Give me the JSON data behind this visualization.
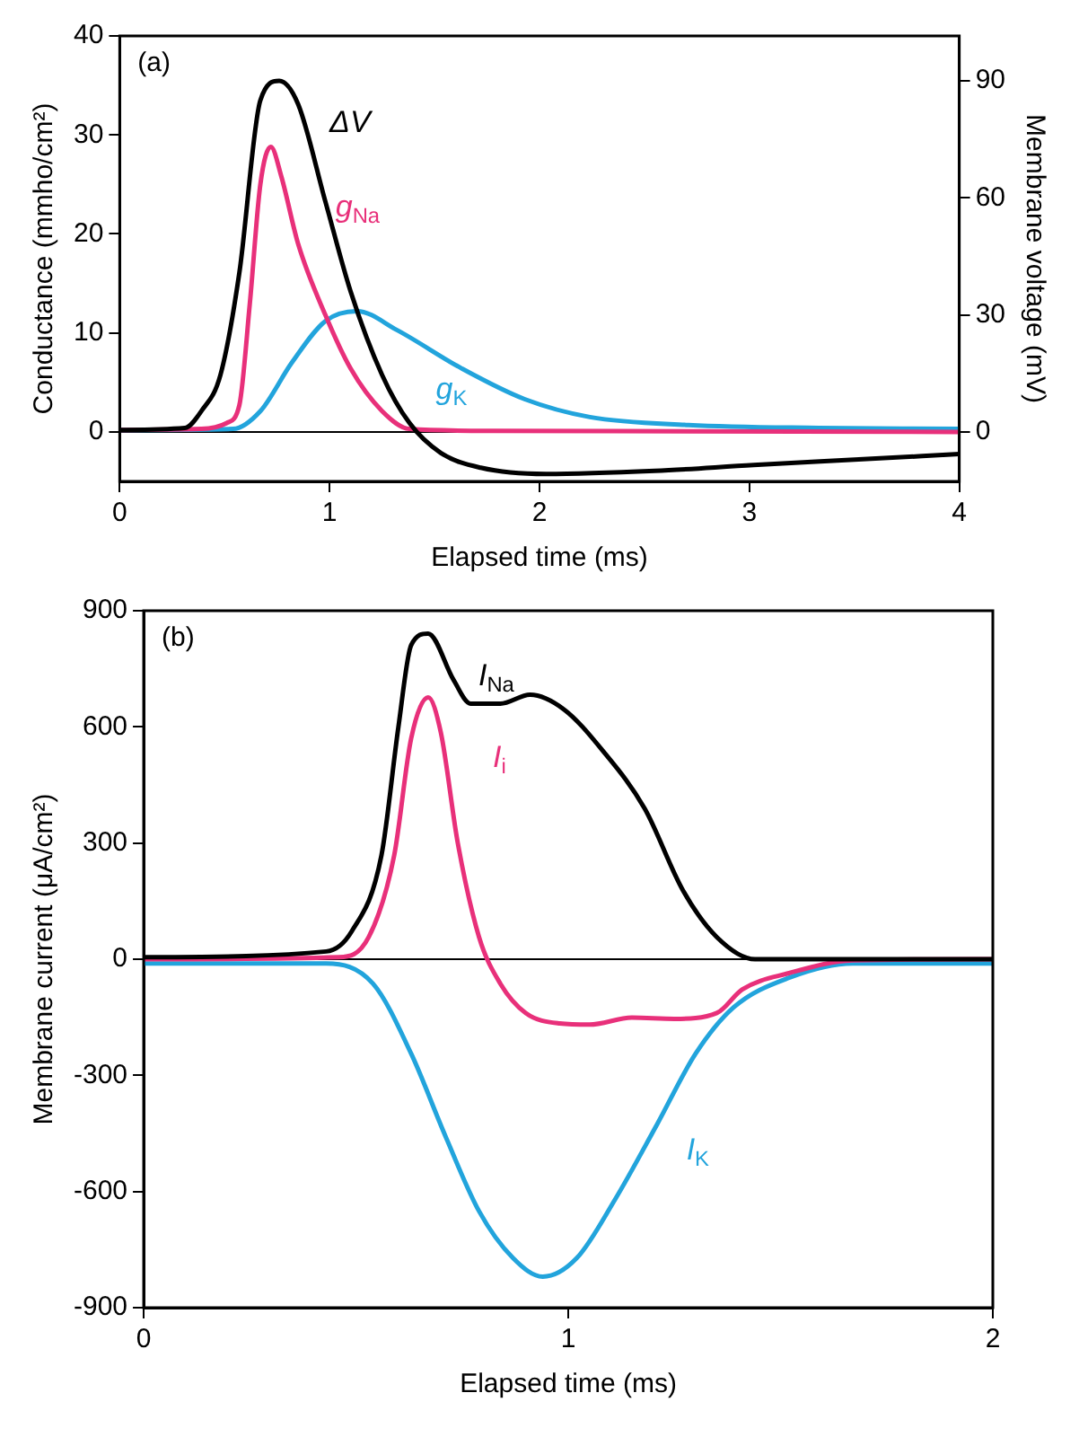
{
  "chart_data": [
    {
      "type": "line",
      "annotations": [
        "(a)"
      ],
      "xlabel": "Elapsed time (ms)",
      "ylabel": "Conductance (mmho/cm²)",
      "y2label": "Membrane voltage (mV)",
      "xlim": [
        0,
        4
      ],
      "xticks": [
        0,
        1,
        2,
        3,
        4
      ],
      "ylim": [
        -5,
        40
      ],
      "yticks": [
        0,
        10,
        20,
        30,
        40
      ],
      "y2lim": [
        -12.7,
        101.5
      ],
      "y2ticks": [
        0,
        30,
        60,
        90
      ],
      "grid": false,
      "legend": false,
      "marker": "none",
      "line_style": "solid",
      "ref_lines": [
        {
          "axis": "y",
          "value": 0,
          "color": "#000000"
        }
      ],
      "series": [
        {
          "name": "ΔV",
          "color": "#000000",
          "axis": "y2",
          "x": [
            0,
            0.31,
            0.39,
            0.48,
            0.57,
            0.67,
            0.76,
            0.85,
            0.98,
            1.1,
            1.25,
            1.38,
            1.53,
            1.72,
            2.03,
            2.55,
            3.02,
            3.48,
            4
          ],
          "values": [
            0.5,
            1,
            5.4,
            14.6,
            40.8,
            85,
            90,
            84,
            59,
            36,
            14.6,
            2.3,
            -5.4,
            -9.2,
            -10.8,
            -10,
            -8.5,
            -7.2,
            -5.7
          ]
        },
        {
          "name": "g$_{Na}$",
          "color": "#e8307a",
          "x": [
            0,
            0.39,
            0.51,
            0.57,
            0.62,
            0.67,
            0.72,
            0.77,
            0.85,
            0.98,
            1.1,
            1.25,
            1.38,
            1.78,
            4
          ],
          "values": [
            0.2,
            0.3,
            0.9,
            2.7,
            13,
            25,
            28.8,
            25.8,
            19,
            11.8,
            6.4,
            2.1,
            0.3,
            0.1,
            0
          ]
        },
        {
          "name": "g$_{K}$",
          "color": "#22a4dc",
          "x": [
            0,
            0.54,
            0.67,
            0.82,
            0.98,
            1.13,
            1.32,
            1.63,
            1.93,
            2.24,
            2.71,
            3.33,
            4
          ],
          "values": [
            0.2,
            0.3,
            2.1,
            7,
            11.2,
            12.2,
            10.3,
            6.4,
            3.3,
            1.5,
            0.7,
            0.4,
            0.3
          ]
        }
      ]
    },
    {
      "type": "line",
      "annotations": [
        "(b)"
      ],
      "xlabel": "Elapsed time (ms)",
      "ylabel": "Membrane current (μA/cm²)",
      "xlim": [
        0,
        2
      ],
      "xticks": [
        0,
        1,
        2
      ],
      "ylim": [
        -900,
        900
      ],
      "yticks": [
        -900,
        -600,
        -300,
        0,
        300,
        600,
        900
      ],
      "grid": false,
      "legend": false,
      "marker": "none",
      "line_style": "solid",
      "ref_lines": [
        {
          "axis": "y",
          "value": 0,
          "color": "#000000"
        }
      ],
      "series": [
        {
          "name": "I$_{Na}$",
          "color": "#000000",
          "x": [
            0,
            0.43,
            0.49,
            0.56,
            0.6,
            0.63,
            0.67,
            0.73,
            0.77,
            0.84,
            0.91,
            0.99,
            1.08,
            1.18,
            1.27,
            1.35,
            1.44,
            2
          ],
          "values": [
            5,
            20,
            72,
            268,
            600,
            811,
            841,
            721,
            660,
            660,
            683,
            645,
            540,
            389,
            178,
            57,
            0,
            0
          ]
        },
        {
          "name": "I$_{i}$",
          "color": "#e8307a",
          "x": [
            0,
            0.46,
            0.53,
            0.59,
            0.63,
            0.67,
            0.7,
            0.74,
            0.79,
            0.84,
            0.9,
            0.98,
            1.05,
            1.15,
            1.25,
            1.35,
            1.41,
            1.52,
            1.67,
            2
          ],
          "values": [
            0,
            5,
            57,
            268,
            570,
            676,
            585,
            299,
            57,
            -63,
            -139,
            -166,
            -169,
            -151,
            -154,
            -139,
            -78,
            -36,
            -3,
            0
          ]
        },
        {
          "name": "I$_{K}$",
          "color": "#22a4dc",
          "x": [
            0,
            0.43,
            0.54,
            0.63,
            0.71,
            0.79,
            0.87,
            0.94,
            1.02,
            1.11,
            1.21,
            1.3,
            1.39,
            1.52,
            1.67,
            2
          ],
          "values": [
            -11,
            -11,
            -63,
            -244,
            -455,
            -651,
            -772,
            -820,
            -772,
            -621,
            -425,
            -244,
            -124,
            -48,
            -11,
            -11
          ]
        }
      ]
    }
  ]
}
